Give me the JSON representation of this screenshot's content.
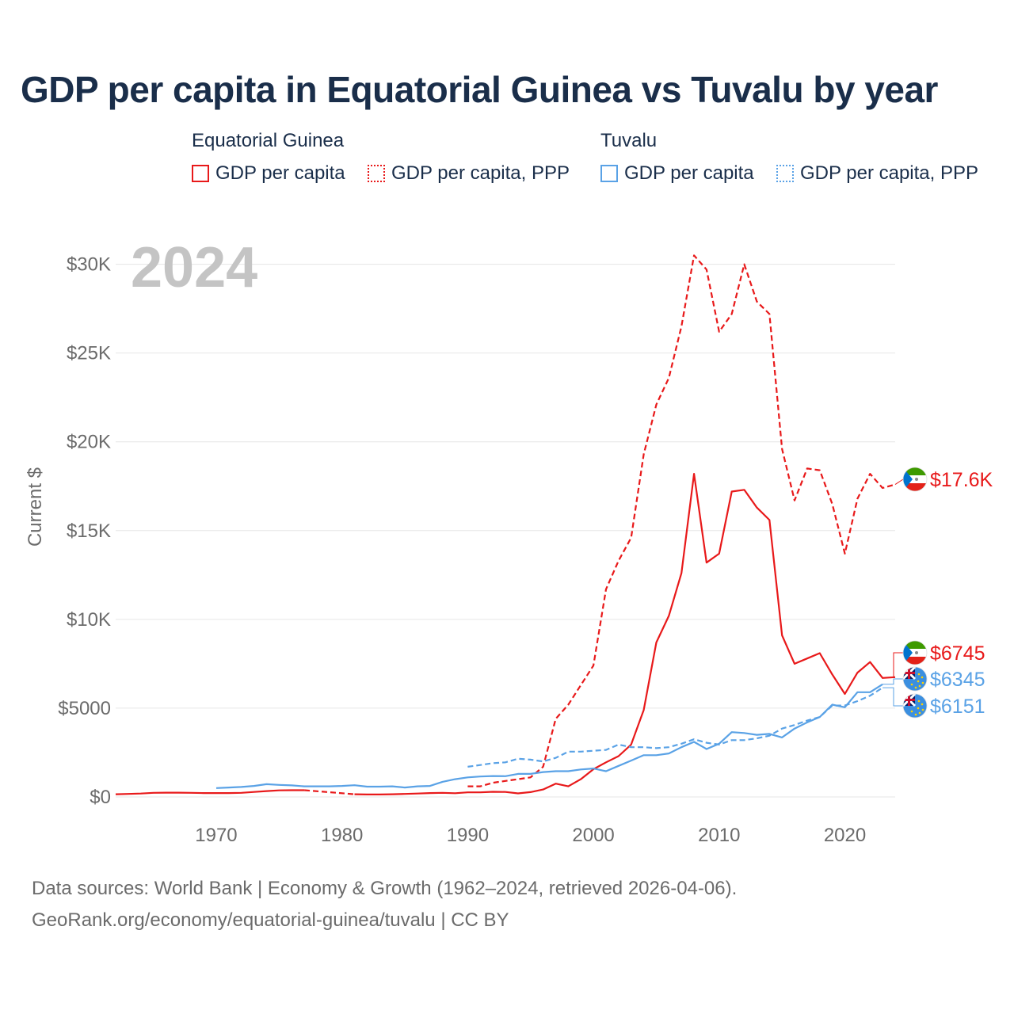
{
  "title": "GDP per capita in Equatorial Guinea vs Tuvalu by year",
  "legend": {
    "groups": [
      {
        "country": "Equatorial Guinea",
        "color": "#e8191a",
        "items": [
          {
            "label": "GDP per capita",
            "style": "solid"
          },
          {
            "label": "GDP per capita, PPP",
            "style": "dotted"
          }
        ]
      },
      {
        "country": "Tuvalu",
        "color": "#5aa2e6",
        "items": [
          {
            "label": "GDP per capita",
            "style": "solid"
          },
          {
            "label": "GDP per capita, PPP",
            "style": "dotted"
          }
        ]
      }
    ]
  },
  "year_label": "2024",
  "footer": {
    "line1": "Data sources: World Bank | Economy & Growth (1962–2024, retrieved 2026-04-06).",
    "line2": "GeoRank.org/economy/equatorial-guinea/tuvalu | CC BY"
  },
  "chart_data": {
    "type": "line",
    "title": "GDP per capita in Equatorial Guinea vs Tuvalu by year",
    "xlabel": "",
    "ylabel": "Current $",
    "xlim": [
      1962,
      2024
    ],
    "ylim": [
      0,
      31500
    ],
    "x_ticks": [
      1970,
      1980,
      1990,
      2000,
      2010,
      2020
    ],
    "x_tick_labels": [
      "1970",
      "1980",
      "1990",
      "2000",
      "2010",
      "2020"
    ],
    "y_ticks": [
      0,
      5000,
      10000,
      15000,
      20000,
      25000,
      30000
    ],
    "y_tick_labels": [
      "$0",
      "$5000",
      "$10K",
      "$15K",
      "$20K",
      "$25K",
      "$30K"
    ],
    "series": [
      {
        "name": "Equatorial Guinea GDP per capita",
        "color": "#e8191a",
        "dash": "solid",
        "points": [
          [
            1962,
            150
          ],
          [
            1963,
            170
          ],
          [
            1964,
            190
          ],
          [
            1965,
            230
          ],
          [
            1966,
            240
          ],
          [
            1967,
            240
          ],
          [
            1968,
            230
          ],
          [
            1969,
            220
          ],
          [
            1970,
            220
          ],
          [
            1971,
            220
          ],
          [
            1972,
            230
          ],
          [
            1973,
            280
          ],
          [
            1974,
            330
          ],
          [
            1975,
            370
          ],
          [
            1976,
            380
          ],
          [
            1977,
            380
          ]
        ]
      },
      {
        "name": "Equatorial Guinea GDP per capita (gap)",
        "color": "#e8191a",
        "dash": "dashed",
        "points": [
          [
            1977,
            380
          ],
          [
            1981,
            150
          ]
        ]
      },
      {
        "name": "Equatorial Guinea GDP per capita",
        "color": "#e8191a",
        "dash": "solid",
        "points": [
          [
            1981,
            150
          ],
          [
            1982,
            140
          ],
          [
            1983,
            140
          ],
          [
            1984,
            150
          ],
          [
            1985,
            170
          ],
          [
            1986,
            190
          ],
          [
            1987,
            220
          ],
          [
            1988,
            230
          ],
          [
            1989,
            210
          ],
          [
            1990,
            260
          ],
          [
            1991,
            260
          ],
          [
            1992,
            290
          ],
          [
            1993,
            280
          ],
          [
            1994,
            200
          ],
          [
            1995,
            270
          ],
          [
            1996,
            420
          ],
          [
            1997,
            750
          ],
          [
            1998,
            600
          ],
          [
            1999,
            1000
          ],
          [
            2000,
            1560
          ],
          [
            2001,
            1950
          ],
          [
            2002,
            2300
          ],
          [
            2003,
            2950
          ],
          [
            2004,
            4900
          ],
          [
            2005,
            8700
          ],
          [
            2006,
            10200
          ],
          [
            2007,
            12600
          ],
          [
            2008,
            18200
          ],
          [
            2009,
            13200
          ],
          [
            2010,
            13700
          ],
          [
            2011,
            17200
          ],
          [
            2012,
            17300
          ],
          [
            2013,
            16300
          ],
          [
            2014,
            15600
          ],
          [
            2015,
            9100
          ],
          [
            2016,
            7500
          ],
          [
            2017,
            7800
          ],
          [
            2018,
            8100
          ],
          [
            2019,
            6900
          ],
          [
            2020,
            5800
          ],
          [
            2021,
            7000
          ],
          [
            2022,
            7600
          ],
          [
            2023,
            6700
          ],
          [
            2024,
            6745
          ]
        ]
      },
      {
        "name": "Equatorial Guinea GDP per capita, PPP",
        "color": "#e8191a",
        "dash": "dashed",
        "points": [
          [
            1990,
            600
          ],
          [
            1991,
            600
          ],
          [
            1992,
            800
          ],
          [
            1993,
            900
          ],
          [
            1994,
            1000
          ],
          [
            1995,
            1100
          ],
          [
            1996,
            1700
          ],
          [
            1997,
            4400
          ],
          [
            1998,
            5200
          ],
          [
            1999,
            6300
          ],
          [
            2000,
            7400
          ],
          [
            2001,
            11700
          ],
          [
            2002,
            13300
          ],
          [
            2003,
            14600
          ],
          [
            2004,
            19300
          ],
          [
            2005,
            22100
          ],
          [
            2006,
            23600
          ],
          [
            2007,
            26500
          ],
          [
            2008,
            30500
          ],
          [
            2009,
            29700
          ],
          [
            2010,
            26200
          ],
          [
            2011,
            27200
          ],
          [
            2012,
            30000
          ],
          [
            2013,
            27900
          ],
          [
            2014,
            27200
          ],
          [
            2015,
            19600
          ],
          [
            2016,
            16700
          ],
          [
            2017,
            18500
          ],
          [
            2018,
            18400
          ],
          [
            2019,
            16500
          ],
          [
            2020,
            13700
          ],
          [
            2021,
            16800
          ],
          [
            2022,
            18200
          ],
          [
            2023,
            17400
          ],
          [
            2024,
            17600
          ]
        ]
      },
      {
        "name": "Tuvalu GDP per capita",
        "color": "#5aa2e6",
        "dash": "solid",
        "points": [
          [
            1970,
            500
          ],
          [
            1971,
            530
          ],
          [
            1972,
            560
          ],
          [
            1973,
            620
          ],
          [
            1974,
            720
          ],
          [
            1975,
            680
          ],
          [
            1976,
            650
          ],
          [
            1977,
            600
          ],
          [
            1978,
            600
          ],
          [
            1979,
            600
          ],
          [
            1980,
            620
          ],
          [
            1981,
            660
          ],
          [
            1982,
            580
          ],
          [
            1983,
            580
          ],
          [
            1984,
            600
          ],
          [
            1985,
            530
          ],
          [
            1986,
            600
          ],
          [
            1987,
            620
          ],
          [
            1988,
            850
          ],
          [
            1989,
            1000
          ],
          [
            1990,
            1100
          ],
          [
            1991,
            1150
          ],
          [
            1992,
            1180
          ],
          [
            1993,
            1170
          ],
          [
            1994,
            1300
          ],
          [
            1995,
            1300
          ],
          [
            1996,
            1400
          ],
          [
            1997,
            1450
          ],
          [
            1998,
            1450
          ],
          [
            1999,
            1550
          ],
          [
            2000,
            1600
          ],
          [
            2001,
            1450
          ],
          [
            2002,
            1750
          ],
          [
            2003,
            2050
          ],
          [
            2004,
            2350
          ],
          [
            2005,
            2350
          ],
          [
            2006,
            2450
          ],
          [
            2007,
            2800
          ],
          [
            2008,
            3100
          ],
          [
            2009,
            2700
          ],
          [
            2010,
            3000
          ],
          [
            2011,
            3650
          ],
          [
            2012,
            3600
          ],
          [
            2013,
            3500
          ],
          [
            2014,
            3550
          ],
          [
            2015,
            3350
          ],
          [
            2016,
            3850
          ],
          [
            2017,
            4200
          ],
          [
            2018,
            4500
          ],
          [
            2019,
            5200
          ],
          [
            2020,
            5050
          ],
          [
            2021,
            5900
          ],
          [
            2022,
            5900
          ],
          [
            2023,
            6345
          ]
        ]
      },
      {
        "name": "Tuvalu GDP per capita, PPP",
        "color": "#5aa2e6",
        "dash": "dashed",
        "points": [
          [
            1990,
            1700
          ],
          [
            1991,
            1800
          ],
          [
            1992,
            1900
          ],
          [
            1993,
            1950
          ],
          [
            1994,
            2150
          ],
          [
            1995,
            2100
          ],
          [
            1996,
            2000
          ],
          [
            1997,
            2200
          ],
          [
            1998,
            2550
          ],
          [
            1999,
            2550
          ],
          [
            2000,
            2600
          ],
          [
            2001,
            2650
          ],
          [
            2002,
            2950
          ],
          [
            2003,
            2800
          ],
          [
            2004,
            2800
          ],
          [
            2005,
            2750
          ],
          [
            2006,
            2800
          ],
          [
            2007,
            3000
          ],
          [
            2008,
            3250
          ],
          [
            2009,
            3050
          ],
          [
            2010,
            2950
          ],
          [
            2011,
            3200
          ],
          [
            2012,
            3200
          ],
          [
            2013,
            3300
          ],
          [
            2014,
            3450
          ],
          [
            2015,
            3850
          ],
          [
            2016,
            4050
          ],
          [
            2017,
            4300
          ],
          [
            2018,
            4500
          ],
          [
            2019,
            5150
          ],
          [
            2020,
            5150
          ],
          [
            2021,
            5400
          ],
          [
            2022,
            5700
          ],
          [
            2023,
            6151
          ]
        ]
      }
    ],
    "end_labels": [
      {
        "text": "$17.6K",
        "value": 17600,
        "color": "#e8191a",
        "flag": "equatorial-guinea-flag"
      },
      {
        "text": "$6745",
        "value": 6745,
        "color": "#e8191a",
        "flag": "equatorial-guinea-flag"
      },
      {
        "text": "$6345",
        "value": 6345,
        "color": "#5aa2e6",
        "flag": "tuvalu-flag"
      },
      {
        "text": "$6151",
        "value": 6151,
        "color": "#5aa2e6",
        "flag": "tuvalu-flag"
      }
    ]
  }
}
